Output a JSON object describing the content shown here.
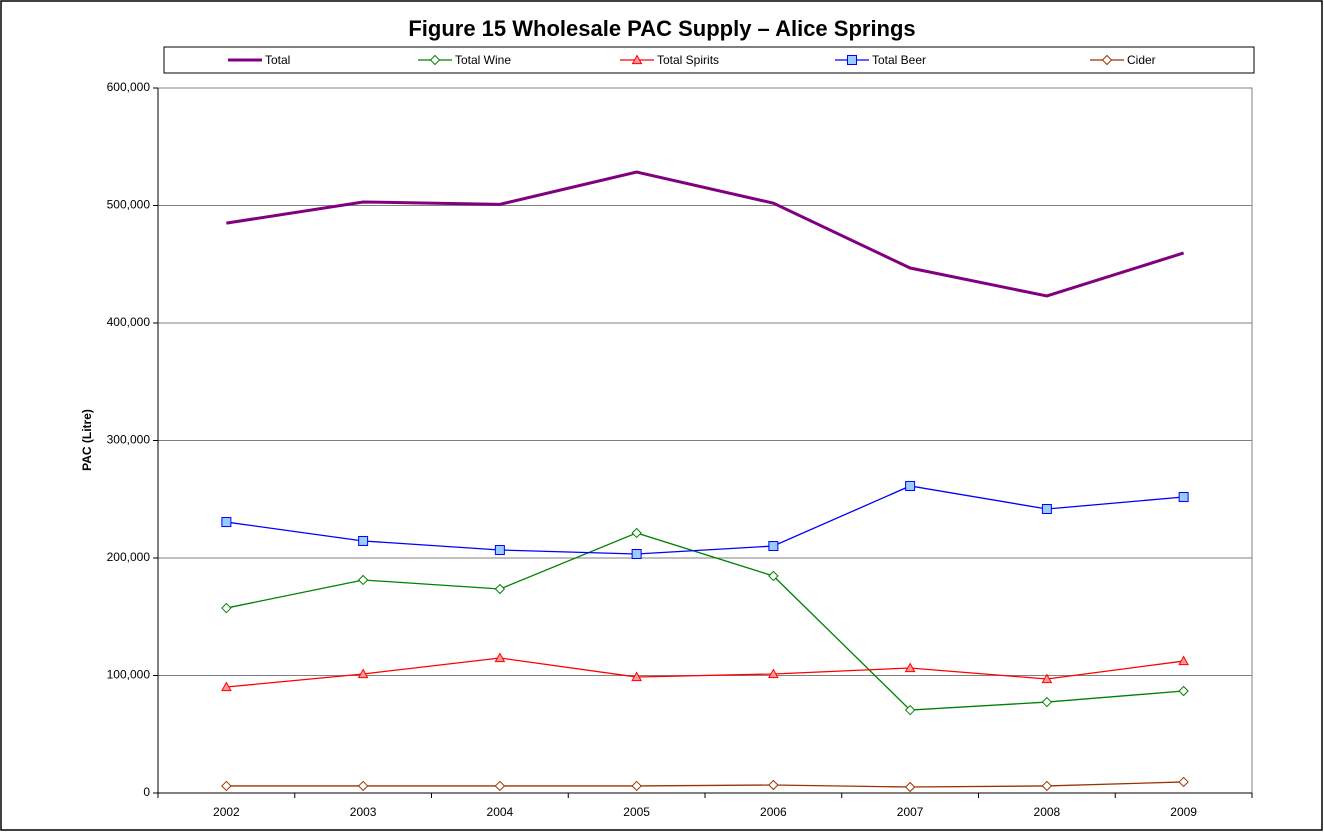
{
  "chart_data": {
    "type": "line",
    "title": "Figure 15 Wholesale PAC Supply – Alice Springs",
    "y_label": "PAC (Litre)",
    "categories": [
      "2002",
      "2003",
      "2004",
      "2005",
      "2006",
      "2007",
      "2008",
      "2009"
    ],
    "series": [
      {
        "name": "Total",
        "color": "#800080",
        "marker": "none",
        "values": [
          485000,
          503000,
          501000,
          528500,
          502000,
          446800,
          423000,
          459600
        ]
      },
      {
        "name": "Total Wine",
        "color": "#008000",
        "marker": "diamond",
        "values": [
          157400,
          181300,
          173600,
          221300,
          184700,
          70600,
          77400,
          86800
        ]
      },
      {
        "name": "Total Spirits",
        "color": "#ff0000",
        "marker": "triangle",
        "values": [
          90200,
          101300,
          114900,
          98700,
          101300,
          106400,
          97000,
          112300
        ]
      },
      {
        "name": "Total Beer",
        "color": "#0000ff",
        "marker": "square",
        "values": [
          230600,
          214500,
          206800,
          203400,
          210200,
          261300,
          241700,
          251900
        ]
      },
      {
        "name": "Cider",
        "color": "#993300",
        "marker": "diamond",
        "values": [
          6000,
          6000,
          6000,
          6000,
          6800,
          5100,
          6000,
          9400
        ]
      }
    ],
    "ylim": [
      0,
      600000
    ],
    "yticks": [
      0,
      {
        "value": 100000,
        "label": "100,000"
      },
      {
        "value": 200000,
        "label": "200,000"
      },
      {
        "value": 300000,
        "label": "300,000"
      },
      {
        "value": 400000,
        "label": "400,000"
      },
      {
        "value": 500000,
        "label": "500,000"
      },
      {
        "value": 600000,
        "label": "600,000"
      }
    ],
    "grid": true,
    "legend": "top"
  }
}
